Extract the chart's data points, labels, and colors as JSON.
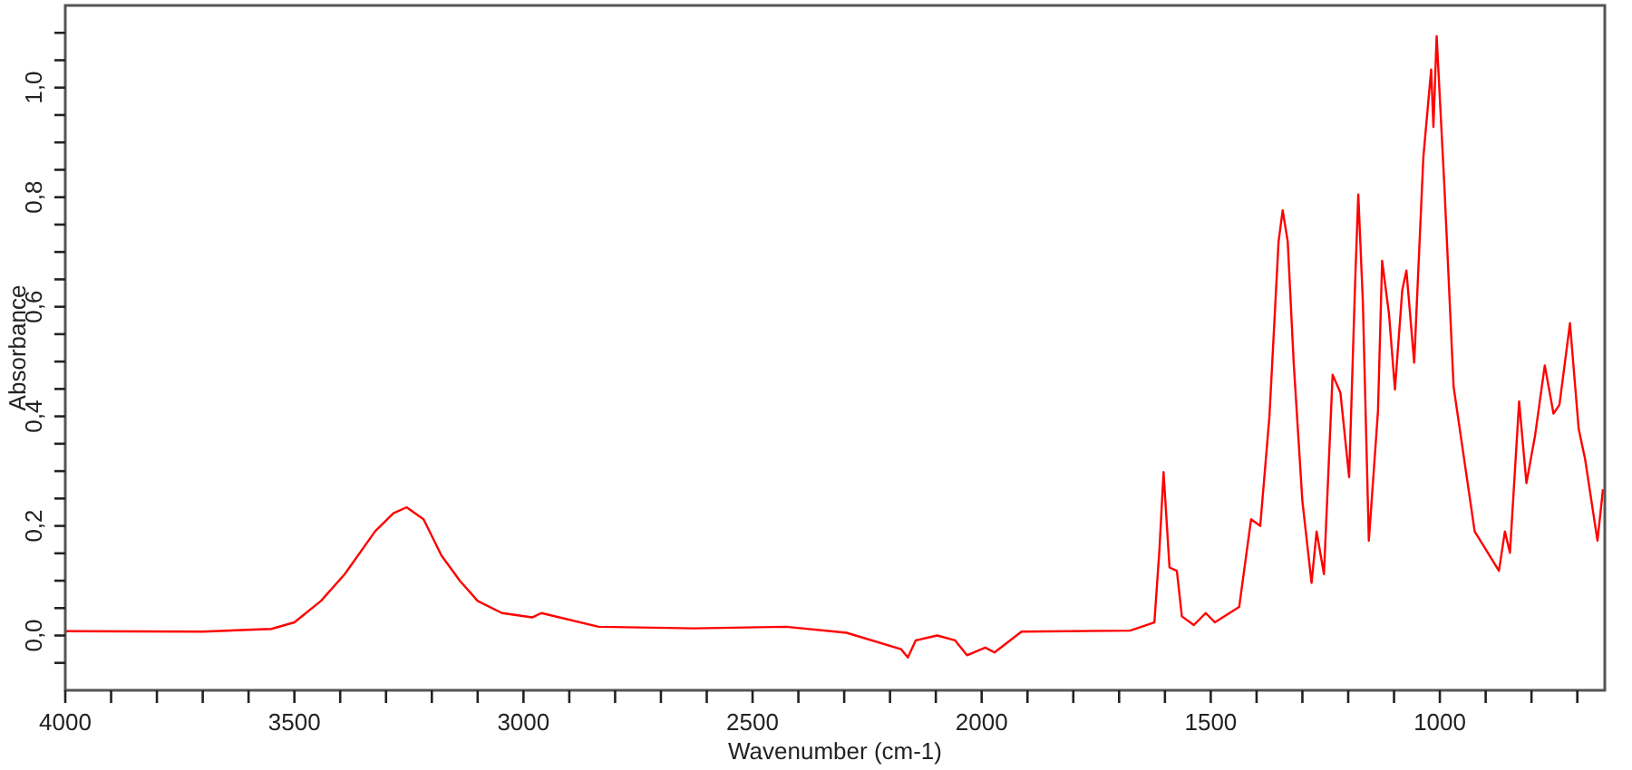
{
  "chart_data": {
    "type": "line",
    "xlabel": "Wavenumber (cm-1)",
    "ylabel": "Absorbance",
    "xlim": [
      4000,
      640
    ],
    "ylim": [
      -0.1,
      1.15
    ],
    "xticks": [
      4000,
      {
        "value": 3900,
        "label": null
      },
      {
        "value": 3800,
        "label": null
      },
      {
        "value": 3700,
        "label": null
      },
      {
        "value": 3600,
        "label": null
      },
      3500,
      {
        "value": 3400,
        "label": null
      },
      {
        "value": 3300,
        "label": null
      },
      {
        "value": 3200,
        "label": null
      },
      {
        "value": 3100,
        "label": null
      },
      3000,
      {
        "value": 2900,
        "label": null
      },
      {
        "value": 2800,
        "label": null
      },
      {
        "value": 2700,
        "label": null
      },
      {
        "value": 2600,
        "label": null
      },
      2500,
      {
        "value": 2400,
        "label": null
      },
      {
        "value": 2300,
        "label": null
      },
      {
        "value": 2200,
        "label": null
      },
      {
        "value": 2100,
        "label": null
      },
      2000,
      {
        "value": 1900,
        "label": null
      },
      {
        "value": 1800,
        "label": null
      },
      {
        "value": 1700,
        "label": null
      },
      {
        "value": 1600,
        "label": null
      },
      1500,
      {
        "value": 1400,
        "label": null
      },
      {
        "value": 1300,
        "label": null
      },
      {
        "value": 1200,
        "label": null
      },
      {
        "value": 1100,
        "label": null
      },
      1000,
      {
        "value": 900,
        "label": null
      },
      {
        "value": 800,
        "label": null
      },
      {
        "value": 700,
        "label": null
      }
    ],
    "yticks": [
      {
        "value": -0.05,
        "label": null
      },
      {
        "value": 0,
        "label": "0,0"
      },
      {
        "value": 0.05,
        "label": null
      },
      {
        "value": 0.1,
        "label": null
      },
      {
        "value": 0.15,
        "label": null
      },
      {
        "value": 0.2,
        "label": "0,2"
      },
      {
        "value": 0.25,
        "label": null
      },
      {
        "value": 0.3,
        "label": null
      },
      {
        "value": 0.35,
        "label": null
      },
      {
        "value": 0.4,
        "label": "0,4"
      },
      {
        "value": 0.45,
        "label": null
      },
      {
        "value": 0.5,
        "label": null
      },
      {
        "value": 0.55,
        "label": null
      },
      {
        "value": 0.6,
        "label": "0,6"
      },
      {
        "value": 0.65,
        "label": null
      },
      {
        "value": 0.7,
        "label": null
      },
      {
        "value": 0.75,
        "label": null
      },
      {
        "value": 0.8,
        "label": "0,8"
      },
      {
        "value": 0.85,
        "label": null
      },
      {
        "value": 0.9,
        "label": null
      },
      {
        "value": 0.95,
        "label": null
      },
      {
        "value": 1,
        "label": "1,0"
      },
      {
        "value": 1.05,
        "label": null
      },
      {
        "value": 1.1,
        "label": null
      }
    ],
    "grid": false,
    "marker": "none",
    "line_style": "solid",
    "series": [
      {
        "color": "#ff0000",
        "x": [
          4000,
          3700,
          3550,
          3500,
          3442,
          3390,
          3324,
          3284,
          3255,
          3218,
          3179,
          3139,
          3100,
          3047,
          2981,
          2961,
          2836,
          2625,
          2427,
          2295,
          2176,
          2161,
          2144,
          2097,
          2058,
          2032,
          1992,
          1972,
          1913,
          1676,
          1623,
          1612,
          1603,
          1590,
          1574,
          1563,
          1537,
          1511,
          1491,
          1438,
          1412,
          1392,
          1372,
          1352,
          1343,
          1332,
          1319,
          1300,
          1280,
          1269,
          1253,
          1234,
          1217,
          1198,
          1185,
          1178,
          1168,
          1155,
          1135,
          1126,
          1111,
          1098,
          1082,
          1073,
          1056,
          1036,
          1019,
          1014,
          1007,
          990,
          970,
          924,
          871,
          858,
          847,
          827,
          811,
          792,
          771,
          752,
          739,
          716,
          697,
          683,
          656,
          644
        ],
        "values": [
          0.008,
          0.007,
          0.012,
          0.024,
          0.063,
          0.112,
          0.19,
          0.223,
          0.234,
          0.212,
          0.146,
          0.1,
          0.063,
          0.041,
          0.033,
          0.041,
          0.016,
          0.013,
          0.016,
          0.005,
          -0.025,
          -0.04,
          -0.009,
          0,
          -0.009,
          -0.036,
          -0.022,
          -0.031,
          0.007,
          0.009,
          0.024,
          0.157,
          0.298,
          0.124,
          0.118,
          0.035,
          0.019,
          0.041,
          0.024,
          0.052,
          0.212,
          0.2,
          0.399,
          0.719,
          0.776,
          0.719,
          0.498,
          0.245,
          0.096,
          0.19,
          0.112,
          0.476,
          0.443,
          0.289,
          0.642,
          0.805,
          0.608,
          0.173,
          0.41,
          0.684,
          0.587,
          0.449,
          0.631,
          0.666,
          0.498,
          0.873,
          1.033,
          0.928,
          1.094,
          0.818,
          0.454,
          0.19,
          0.118,
          0.19,
          0.151,
          0.427,
          0.278,
          0.366,
          0.493,
          0.405,
          0.421,
          0.57,
          0.377,
          0.322,
          0.173,
          0.267
        ]
      }
    ]
  }
}
